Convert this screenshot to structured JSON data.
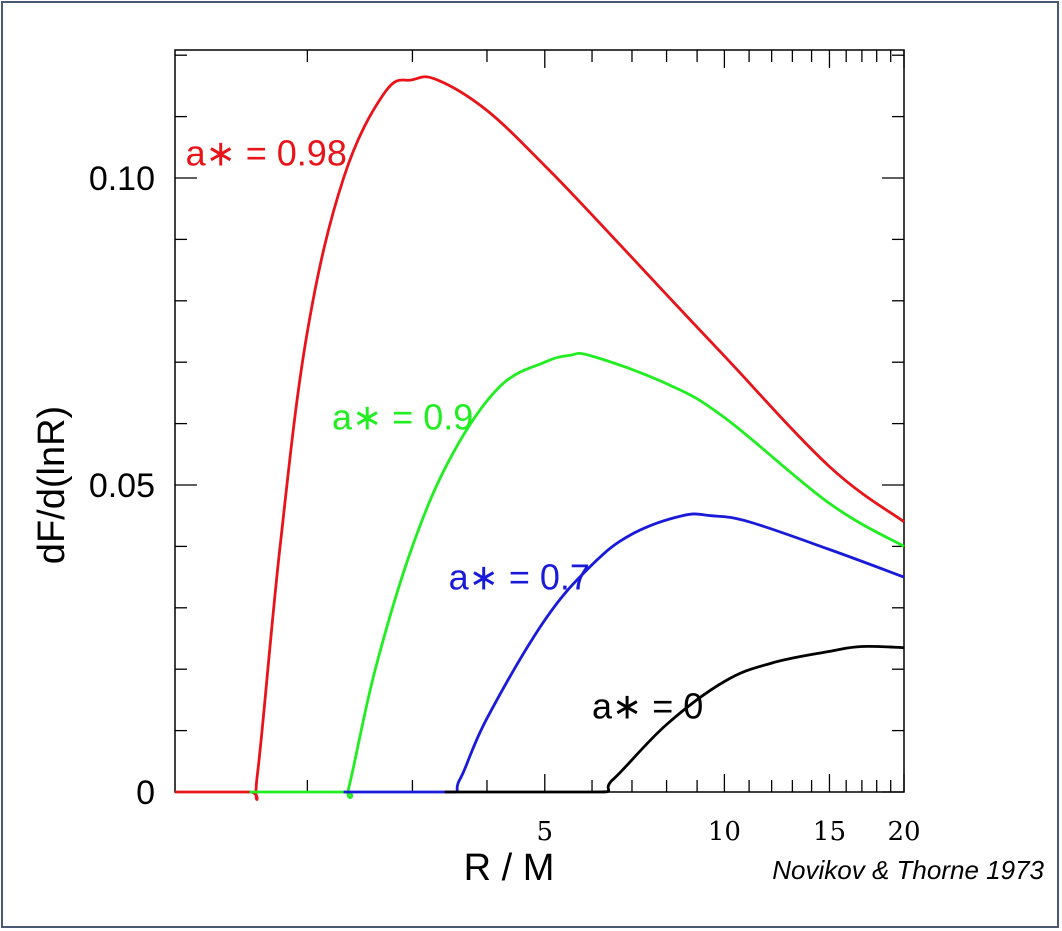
{
  "credit": "Novikov & Thorne 1973",
  "chart_data": {
    "type": "line",
    "xlabel": "R / M",
    "ylabel": "dF/d(lnR)",
    "x_scale": "log",
    "xlim": [
      1.2,
      20
    ],
    "ylim": [
      0,
      0.1
    ],
    "y_ticks": [
      {
        "value": 0,
        "label": "0"
      },
      {
        "value": 0.05,
        "label": "0.05"
      },
      {
        "value": 0.1,
        "label": "0.10"
      }
    ],
    "x_ticks": [
      {
        "value": 5,
        "label": "5"
      },
      {
        "value": 10,
        "label": "10"
      },
      {
        "value": 15,
        "label": "15"
      },
      {
        "value": 20,
        "label": "20"
      }
    ],
    "series": [
      {
        "name": "a* = 0.98",
        "color": "#e8141a",
        "label_pos": [
          1.25,
          0.102
        ],
        "points": [
          [
            1.2,
            0
          ],
          [
            1.6,
            0
          ],
          [
            1.65,
            0.003
          ],
          [
            1.8,
            0.04
          ],
          [
            2.0,
            0.075
          ],
          [
            2.3,
            0.1
          ],
          [
            2.7,
            0.114
          ],
          [
            3.0,
            0.116
          ],
          [
            3.3,
            0.116
          ],
          [
            4,
            0.111
          ],
          [
            5,
            0.102
          ],
          [
            6,
            0.094
          ],
          [
            8,
            0.081
          ],
          [
            10,
            0.071
          ],
          [
            15,
            0.053
          ],
          [
            20,
            0.044
          ]
        ]
      },
      {
        "name": "a* = 0.9",
        "color": "#21ee21",
        "label_pos": [
          2.2,
          0.059
        ],
        "points": [
          [
            1.6,
            0
          ],
          [
            2.3,
            0
          ],
          [
            2.35,
            0.001
          ],
          [
            2.6,
            0.02
          ],
          [
            3.0,
            0.04
          ],
          [
            3.5,
            0.055
          ],
          [
            4.2,
            0.066
          ],
          [
            5,
            0.07
          ],
          [
            5.5,
            0.0711
          ],
          [
            6,
            0.071
          ],
          [
            8,
            0.0665
          ],
          [
            10,
            0.061
          ],
          [
            15,
            0.047
          ],
          [
            20,
            0.04
          ]
        ]
      },
      {
        "name": "a* = 0.7",
        "color": "#1a1ad9",
        "label_pos": [
          3.45,
          0.033
        ],
        "points": [
          [
            2.3,
            0
          ],
          [
            3.4,
            0
          ],
          [
            3.6,
            0.002
          ],
          [
            4,
            0.012
          ],
          [
            5,
            0.028
          ],
          [
            6,
            0.037
          ],
          [
            7,
            0.042
          ],
          [
            8.5,
            0.045
          ],
          [
            9.5,
            0.045
          ],
          [
            11,
            0.044
          ],
          [
            15,
            0.0395
          ],
          [
            20,
            0.035
          ]
        ]
      },
      {
        "name": "a* = 0",
        "color": "#000000",
        "label_pos": [
          6.0,
          0.012
        ],
        "points": [
          [
            3.4,
            0
          ],
          [
            6,
            0
          ],
          [
            6.5,
            0.002
          ],
          [
            8,
            0.011
          ],
          [
            10,
            0.018
          ],
          [
            12,
            0.021
          ],
          [
            15,
            0.0229
          ],
          [
            17,
            0.0237
          ],
          [
            20,
            0.0235
          ]
        ]
      }
    ]
  }
}
